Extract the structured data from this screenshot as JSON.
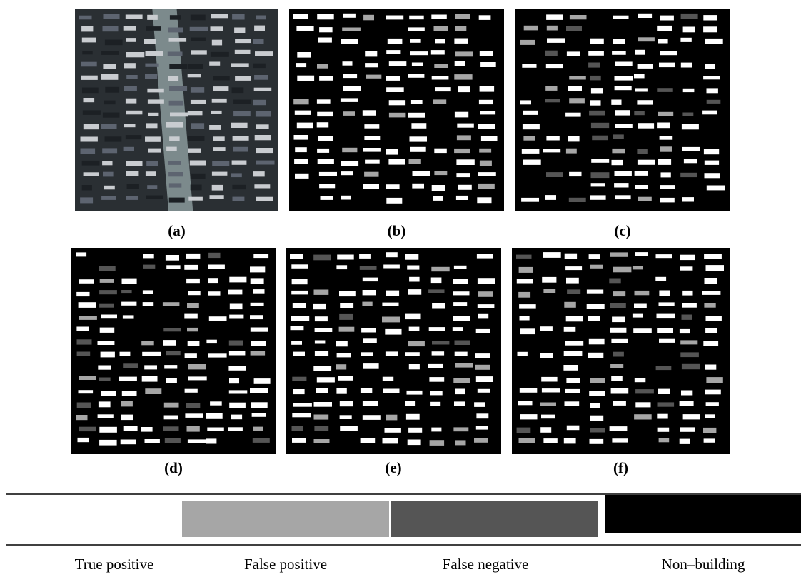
{
  "panels": [
    {
      "label": "(a)"
    },
    {
      "label": "(b)"
    },
    {
      "label": "(c)"
    },
    {
      "label": "(d)"
    },
    {
      "label": "(e)"
    },
    {
      "label": "(f)"
    }
  ],
  "legend": [
    {
      "label": "True positive",
      "color": "#ffffff"
    },
    {
      "label": "False positive",
      "color": "#a6a6a6"
    },
    {
      "label": "False negative",
      "color": "#555555"
    },
    {
      "label": "Non–building",
      "color": "#000000"
    }
  ]
}
